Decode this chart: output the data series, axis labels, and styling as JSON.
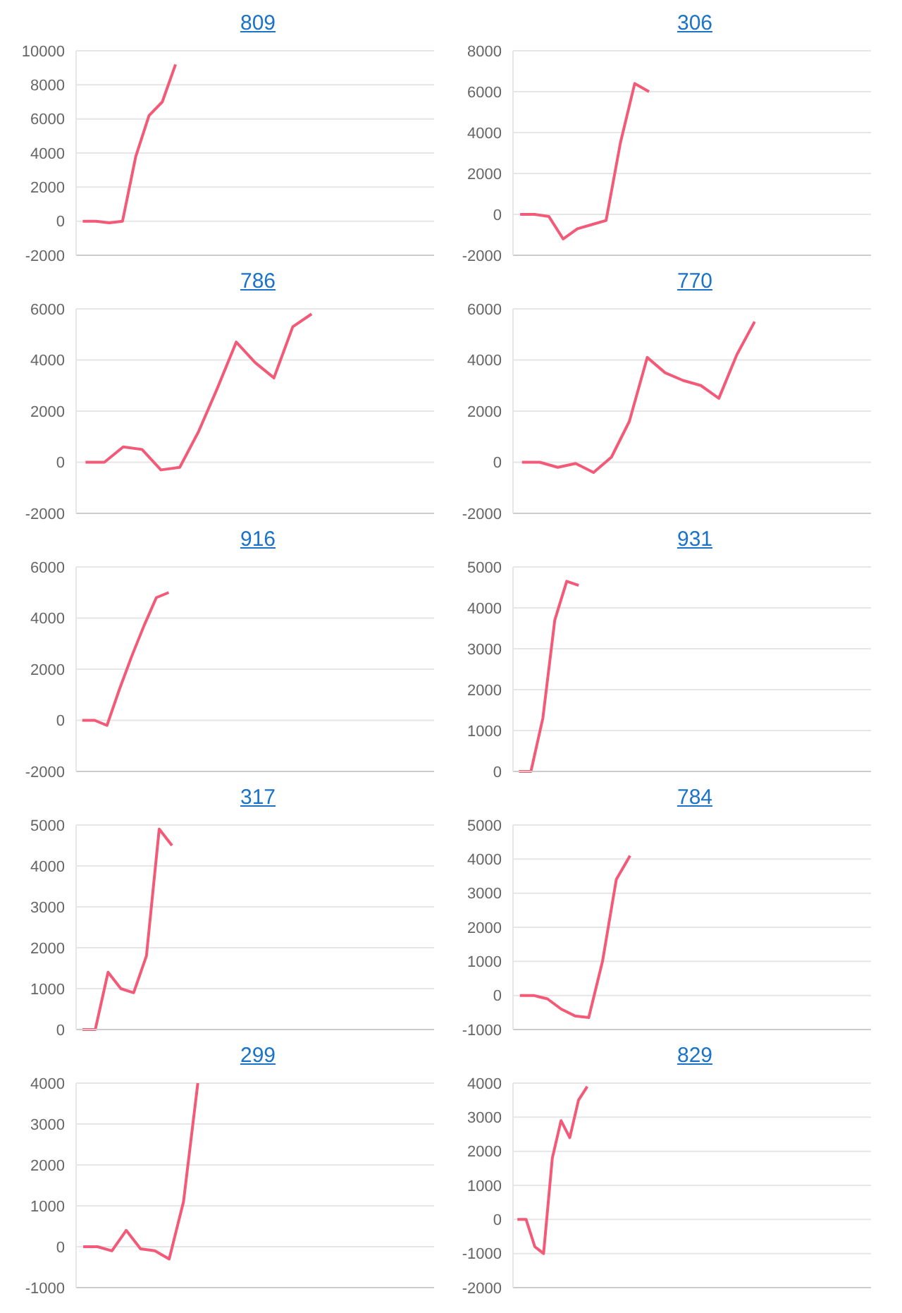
{
  "chart_data": [
    {
      "type": "line",
      "title": "809",
      "categories": [
        null,
        null,
        null,
        null,
        null,
        null,
        null,
        null,
        null,
        null,
        null,
        null,
        null,
        null,
        null,
        null,
        null,
        null,
        null,
        null,
        null,
        null,
        null,
        null,
        null,
        null,
        null
      ],
      "values": [
        0,
        0,
        -100,
        0,
        3800,
        6200,
        7000,
        9200,
        null,
        null,
        null,
        null,
        null,
        null,
        null,
        null,
        null,
        null,
        null,
        null,
        null,
        null,
        null,
        null,
        null,
        null,
        null
      ],
      "color": "#f25a78",
      "ylim": [
        -2000,
        10000
      ],
      "yticks": [
        -2000,
        0,
        2000,
        4000,
        6000,
        8000,
        10000
      ],
      "grid": "y",
      "tick_labels": "y"
    },
    {
      "type": "line",
      "title": "306",
      "categories": [
        null,
        null,
        null,
        null,
        null,
        null,
        null,
        null,
        null,
        null,
        null,
        null,
        null,
        null,
        null,
        null,
        null,
        null,
        null,
        null,
        null,
        null,
        null,
        null,
        null
      ],
      "values": [
        0,
        0,
        -100,
        -1200,
        -700,
        -500,
        -300,
        3500,
        6400,
        6000,
        null,
        null,
        null,
        null,
        null,
        null,
        null,
        null,
        null,
        null,
        null,
        null,
        null,
        null,
        null
      ],
      "color": "#f25a78",
      "ylim": [
        -2000,
        8000
      ],
      "yticks": [
        -2000,
        0,
        2000,
        4000,
        6000,
        8000
      ],
      "grid": "y",
      "tick_labels": "y"
    },
    {
      "type": "line",
      "title": "786",
      "categories": [
        null,
        null,
        null,
        null,
        null,
        null,
        null,
        null,
        null,
        null,
        null,
        null,
        null,
        null,
        null,
        null,
        null,
        null,
        null
      ],
      "values": [
        0,
        0,
        600,
        500,
        -300,
        -200,
        1200,
        2900,
        4700,
        3900,
        3300,
        5300,
        5800,
        null,
        null,
        null,
        null,
        null,
        null
      ],
      "color": "#f25a78",
      "ylim": [
        -2000,
        6000
      ],
      "yticks": [
        -2000,
        0,
        2000,
        4000,
        6000
      ],
      "grid": "y",
      "tick_labels": "y"
    },
    {
      "type": "line",
      "title": "770",
      "categories": [
        null,
        null,
        null,
        null,
        null,
        null,
        null,
        null,
        null,
        null,
        null,
        null,
        null,
        null,
        null,
        null,
        null,
        null,
        null,
        null
      ],
      "values": [
        0,
        0,
        -200,
        -50,
        -400,
        200,
        1600,
        4100,
        3500,
        3200,
        3000,
        2500,
        4200,
        5500,
        null,
        null,
        null,
        null,
        null,
        null
      ],
      "color": "#f25a78",
      "ylim": [
        -2000,
        6000
      ],
      "yticks": [
        -2000,
        0,
        2000,
        4000,
        6000
      ],
      "grid": "y",
      "tick_labels": "y"
    },
    {
      "type": "line",
      "title": "916",
      "categories": [
        null,
        null,
        null,
        null,
        null,
        null,
        null,
        null,
        null,
        null,
        null,
        null,
        null,
        null,
        null,
        null,
        null,
        null,
        null,
        null,
        null,
        null,
        null,
        null,
        null,
        null,
        null,
        null,
        null
      ],
      "values": [
        0,
        0,
        -200,
        1200,
        2500,
        3700,
        4800,
        5000,
        null,
        null,
        null,
        null,
        null,
        null,
        null,
        null,
        null,
        null,
        null,
        null,
        null,
        null,
        null,
        null,
        null,
        null,
        null,
        null,
        null
      ],
      "color": "#f25a78",
      "ylim": [
        -2000,
        6000
      ],
      "yticks": [
        -2000,
        0,
        2000,
        4000,
        6000
      ],
      "grid": "y",
      "tick_labels": "y"
    },
    {
      "type": "line",
      "title": "931",
      "categories": [
        null,
        null,
        null,
        null,
        null,
        null,
        null,
        null,
        null,
        null,
        null,
        null,
        null,
        null,
        null,
        null,
        null,
        null,
        null,
        null,
        null,
        null,
        null,
        null,
        null,
        null,
        null,
        null,
        null,
        null
      ],
      "values": [
        0,
        0,
        1300,
        3700,
        4650,
        4550,
        null,
        null,
        null,
        null,
        null,
        null,
        null,
        null,
        null,
        null,
        null,
        null,
        null,
        null,
        null,
        null,
        null,
        null,
        null,
        null,
        null,
        null,
        null,
        null
      ],
      "color": "#f25a78",
      "ylim": [
        0,
        5000
      ],
      "yticks": [
        0,
        1000,
        2000,
        3000,
        4000,
        5000
      ],
      "grid": "y",
      "tick_labels": "y"
    },
    {
      "type": "line",
      "title": "317",
      "categories": [
        null,
        null,
        null,
        null,
        null,
        null,
        null,
        null,
        null,
        null,
        null,
        null,
        null,
        null,
        null,
        null,
        null,
        null,
        null,
        null,
        null,
        null,
        null,
        null,
        null,
        null,
        null,
        null
      ],
      "values": [
        0,
        0,
        1400,
        1000,
        900,
        1800,
        4900,
        4500,
        null,
        null,
        null,
        null,
        null,
        null,
        null,
        null,
        null,
        null,
        null,
        null,
        null,
        null,
        null,
        null,
        null,
        null,
        null,
        null
      ],
      "color": "#f25a78",
      "ylim": [
        0,
        5000
      ],
      "yticks": [
        0,
        1000,
        2000,
        3000,
        4000,
        5000
      ],
      "grid": "y",
      "tick_labels": "y"
    },
    {
      "type": "line",
      "title": "784",
      "categories": [
        null,
        null,
        null,
        null,
        null,
        null,
        null,
        null,
        null,
        null,
        null,
        null,
        null,
        null,
        null,
        null,
        null,
        null,
        null,
        null,
        null,
        null,
        null,
        null,
        null,
        null
      ],
      "values": [
        0,
        0,
        -100,
        -400,
        -600,
        -650,
        1000,
        3400,
        4100,
        null,
        null,
        null,
        null,
        null,
        null,
        null,
        null,
        null,
        null,
        null,
        null,
        null,
        null,
        null,
        null,
        null
      ],
      "color": "#f25a78",
      "ylim": [
        -1000,
        5000
      ],
      "yticks": [
        -1000,
        0,
        1000,
        2000,
        3000,
        4000,
        5000
      ],
      "grid": "y",
      "tick_labels": "y"
    },
    {
      "type": "line",
      "title": "299",
      "categories": [
        null,
        null,
        null,
        null,
        null,
        null,
        null,
        null,
        null,
        null,
        null,
        null,
        null,
        null,
        null,
        null,
        null,
        null,
        null,
        null,
        null,
        null,
        null,
        null,
        null
      ],
      "values": [
        0,
        0,
        -100,
        400,
        -50,
        -100,
        -300,
        1100,
        4000,
        null,
        null,
        null,
        null,
        null,
        null,
        null,
        null,
        null,
        null,
        null,
        null,
        null,
        null,
        null,
        null
      ],
      "color": "#f25a78",
      "ylim": [
        -1000,
        4000
      ],
      "yticks": [
        -1000,
        0,
        1000,
        2000,
        3000,
        4000
      ],
      "grid": "y",
      "tick_labels": "y"
    },
    {
      "type": "line",
      "title": "829",
      "categories": [
        null,
        null,
        null,
        null,
        null,
        null,
        null,
        null,
        null,
        null,
        null,
        null,
        null,
        null,
        null,
        null,
        null,
        null,
        null,
        null,
        null,
        null,
        null,
        null,
        null,
        null,
        null,
        null,
        null,
        null,
        null,
        null,
        null,
        null,
        null,
        null,
        null,
        null,
        null,
        null,
        null
      ],
      "values": [
        0,
        0,
        -800,
        -1000,
        1800,
        2900,
        2400,
        3500,
        3900,
        null,
        null,
        null,
        null,
        null,
        null,
        null,
        null,
        null,
        null,
        null,
        null,
        null,
        null,
        null,
        null,
        null,
        null,
        null,
        null,
        null,
        null,
        null,
        null,
        null,
        null,
        null,
        null,
        null,
        null,
        null,
        null
      ],
      "color": "#f25a78",
      "ylim": [
        -2000,
        4000
      ],
      "yticks": [
        -2000,
        -1000,
        0,
        1000,
        2000,
        3000,
        4000
      ],
      "grid": "y",
      "tick_labels": "y"
    }
  ]
}
